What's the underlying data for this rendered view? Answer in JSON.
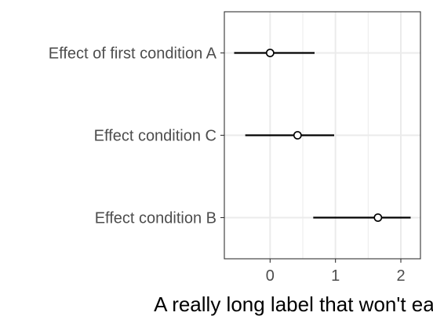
{
  "chart_data": {
    "type": "scatter",
    "subtype": "point-range (forest plot)",
    "categories": [
      "Effect of first condition A",
      "Effect condition C",
      "Effect condition B"
    ],
    "series": [
      {
        "estimate": [
          0.0,
          0.42,
          1.65
        ],
        "lower": [
          -0.55,
          -0.38,
          0.66
        ],
        "upper": [
          0.68,
          0.98,
          2.15
        ]
      }
    ],
    "xlabel": "A really long label that won't easily fit!",
    "ylabel": "",
    "xlim": [
      -0.7,
      2.3
    ],
    "x_ticks": [
      0,
      1,
      2
    ],
    "x_tick_labels": [
      "0",
      "1",
      "2"
    ],
    "grid": true,
    "legend": "none",
    "colors": {
      "panel_border": "#333333",
      "grid": "#ebebeb",
      "marks": "#000000",
      "tick_text": "#4d4d4d"
    }
  }
}
